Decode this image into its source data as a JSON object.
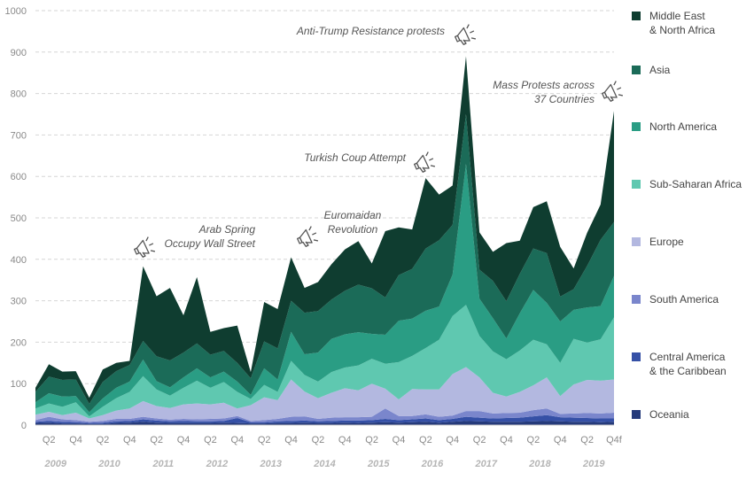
{
  "chart_data": {
    "type": "area",
    "stacked": true,
    "ylim": [
      0,
      1000
    ],
    "y_ticks": [
      "0",
      "100",
      "200",
      "300",
      "400",
      "500",
      "600",
      "700",
      "800",
      "900",
      "1000"
    ],
    "grid": "horizontal dashed",
    "legend_placement": "right",
    "x": [
      "2009 Q1",
      "2009 Q2",
      "2009 Q3",
      "2009 Q4",
      "2010 Q1",
      "2010 Q2",
      "2010 Q3",
      "2010 Q4",
      "2011 Q1",
      "2011 Q2",
      "2011 Q3",
      "2011 Q4",
      "2012 Q1",
      "2012 Q2",
      "2012 Q3",
      "2012 Q4",
      "2013 Q1",
      "2013 Q2",
      "2013 Q3",
      "2013 Q4",
      "2014 Q1",
      "2014 Q2",
      "2014 Q3",
      "2014 Q4",
      "2015 Q1",
      "2015 Q2",
      "2015 Q3",
      "2015 Q4",
      "2016 Q1",
      "2016 Q2",
      "2016 Q3",
      "2016 Q4",
      "2017 Q1",
      "2017 Q2",
      "2017 Q3",
      "2017 Q4",
      "2018 Q1",
      "2018 Q2",
      "2018 Q3",
      "2018 Q4",
      "2019 Q1",
      "2019 Q2",
      "2019 Q3",
      "2019 Q4f"
    ],
    "x_tick_labels": [
      "",
      "Q2",
      "",
      "Q4",
      "",
      "Q2",
      "",
      "Q4",
      "",
      "Q2",
      "",
      "Q4",
      "",
      "Q2",
      "",
      "Q4",
      "",
      "Q2",
      "",
      "Q4",
      "",
      "Q2",
      "",
      "Q4",
      "",
      "Q2",
      "",
      "Q4",
      "",
      "Q2",
      "",
      "Q4",
      "",
      "Q2",
      "",
      "Q4",
      "",
      "Q2",
      "",
      "Q4",
      "",
      "Q2",
      "",
      "Q4f"
    ],
    "year_labels": [
      "2009",
      "2010",
      "2011",
      "2012",
      "2013",
      "2014",
      "2015",
      "2016",
      "2017",
      "2018",
      "2019"
    ],
    "series": [
      {
        "name": "Oceania",
        "color": "#253a7a",
        "values": [
          5,
          6,
          4,
          4,
          3,
          3,
          5,
          6,
          8,
          6,
          5,
          5,
          5,
          5,
          6,
          5,
          4,
          4,
          5,
          5,
          6,
          5,
          5,
          6,
          5,
          6,
          7,
          6,
          7,
          8,
          6,
          8,
          10,
          9,
          8,
          8,
          8,
          9,
          10,
          9,
          8,
          8,
          7,
          8
        ]
      },
      {
        "name": "Central America & the Caribbean",
        "color": "#3550a6",
        "values": [
          3,
          4,
          4,
          3,
          2,
          3,
          4,
          4,
          6,
          5,
          4,
          5,
          4,
          4,
          4,
          12,
          3,
          3,
          4,
          5,
          5,
          4,
          5,
          5,
          6,
          6,
          8,
          6,
          7,
          8,
          6,
          7,
          10,
          9,
          8,
          9,
          10,
          12,
          14,
          10,
          10,
          9,
          9,
          8
        ]
      },
      {
        "name": "South America",
        "color": "#7a86cc",
        "values": [
          4,
          10,
          6,
          5,
          3,
          4,
          6,
          5,
          6,
          5,
          4,
          5,
          5,
          6,
          6,
          5,
          3,
          5,
          6,
          10,
          10,
          6,
          8,
          8,
          8,
          8,
          25,
          10,
          8,
          10,
          8,
          8,
          14,
          16,
          12,
          12,
          12,
          15,
          16,
          8,
          10,
          12,
          12,
          14
        ]
      },
      {
        "name": "Europe",
        "color": "#b3b8e0",
        "values": [
          13,
          12,
          10,
          18,
          8,
          14,
          20,
          25,
          38,
          30,
          28,
          35,
          38,
          35,
          38,
          18,
          38,
          55,
          45,
          90,
          60,
          50,
          60,
          70,
          65,
          80,
          48,
          40,
          65,
          60,
          66,
          100,
          106,
          81,
          50,
          40,
          50,
          60,
          75,
          43,
          70,
          80,
          79,
          80
        ]
      },
      {
        "name": "Sub-Saharan Africa",
        "color": "#5fc8b0",
        "values": [
          15,
          20,
          20,
          25,
          5,
          20,
          30,
          40,
          60,
          40,
          30,
          40,
          55,
          40,
          50,
          40,
          15,
          30,
          20,
          45,
          40,
          40,
          50,
          50,
          60,
          60,
          60,
          90,
          80,
          100,
          120,
          140,
          150,
          100,
          100,
          90,
          100,
          110,
          80,
          80,
          110,
          90,
          100,
          150
        ]
      },
      {
        "name": "North America",
        "color": "#2a9d84",
        "values": [
          15,
          25,
          25,
          15,
          10,
          20,
          25,
          25,
          40,
          20,
          20,
          25,
          30,
          25,
          25,
          25,
          10,
          40,
          30,
          70,
          50,
          70,
          80,
          80,
          80,
          60,
          70,
          100,
          90,
          90,
          80,
          100,
          340,
          90,
          80,
          50,
          90,
          120,
          100,
          100,
          70,
          85,
          80,
          100
        ]
      },
      {
        "name": "Asia",
        "color": "#1b6b58",
        "values": [
          25,
          40,
          40,
          40,
          20,
          40,
          40,
          40,
          45,
          60,
          65,
          60,
          60,
          55,
          50,
          45,
          40,
          65,
          75,
          75,
          100,
          100,
          95,
          105,
          115,
          110,
          90,
          110,
          120,
          150,
          160,
          120,
          120,
          70,
          90,
          90,
          95,
          100,
          120,
          60,
          50,
          100,
          160,
          130
        ]
      },
      {
        "name": "Middle East & North Africa",
        "color": "#0f3d30",
        "values": [
          10,
          30,
          20,
          20,
          15,
          30,
          20,
          10,
          180,
          145,
          175,
          90,
          160,
          55,
          55,
          90,
          15,
          95,
          95,
          105,
          60,
          70,
          85,
          100,
          105,
          60,
          160,
          115,
          95,
          170,
          110,
          95,
          140,
          90,
          70,
          140,
          80,
          100,
          125,
          120,
          50,
          80,
          85,
          268
        ]
      }
    ],
    "annotations": [
      {
        "x": "2011 Q1",
        "text": [
          "Arab Spring",
          "Occupy Wall Street"
        ]
      },
      {
        "x": "2013 Q4",
        "text": [
          "Euromaidan",
          "Revolution"
        ]
      },
      {
        "x": "2016 Q2",
        "text": [
          "Turkish Coup Attempt"
        ]
      },
      {
        "x": "2016 Q4",
        "text": [
          "Anti-Trump Resistance protests"
        ]
      },
      {
        "x": "2019 Q4f",
        "text": [
          "Mass Protests across",
          "37 Countries"
        ]
      }
    ],
    "legend": [
      {
        "series": "Middle East & North Africa",
        "lines": [
          "Middle East",
          "& North Africa"
        ]
      },
      {
        "series": "Asia",
        "lines": [
          "Asia"
        ]
      },
      {
        "series": "North America",
        "lines": [
          "North America"
        ]
      },
      {
        "series": "Sub-Saharan Africa",
        "lines": [
          "Sub-Saharan Africa"
        ]
      },
      {
        "series": "Europe",
        "lines": [
          "Europe"
        ]
      },
      {
        "series": "South America",
        "lines": [
          "South America"
        ]
      },
      {
        "series": "Central America & the Caribbean",
        "lines": [
          "Central America",
          "& the Caribbean"
        ]
      },
      {
        "series": "Oceania",
        "lines": [
          "Oceania"
        ]
      }
    ]
  }
}
